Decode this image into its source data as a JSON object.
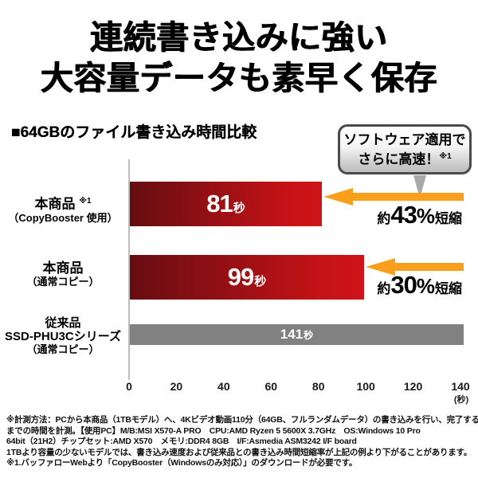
{
  "title": {
    "line1": "連続書き込みに強い",
    "line2": "大容量データも素早く保存"
  },
  "chart": {
    "heading": "■64GBのファイル書き込み時間比較",
    "callout": {
      "line1": "ソフトウェア適用で",
      "line2": "さらに高速！",
      "note": "※1"
    },
    "x_unit_label": "(秒)"
  },
  "chart_data": {
    "type": "bar",
    "orientation": "horizontal",
    "title": "64GBのファイル書き込み時間比較",
    "categories": [
      "本商品（CopyBooster 使用）※1",
      "本商品（通常コピー）",
      "従来品 SSD-PHU3Cシリーズ（通常コピー）"
    ],
    "values": [
      81,
      99,
      141
    ],
    "value_unit": "秒",
    "xlim": [
      0,
      140
    ],
    "x_ticks": [
      0,
      20,
      40,
      60,
      80,
      100,
      120,
      140
    ],
    "x_unit": "秒",
    "bar_colors": [
      "#c41217",
      "#c41217",
      "#818181"
    ],
    "annotations": [
      "約43%短縮",
      "約30%短縮",
      null
    ],
    "grid": false,
    "legend": "none"
  },
  "rows": [
    {
      "label_main": "本商品",
      "label_note": "※1",
      "label_sub": "（CopyBooster 使用）"
    },
    {
      "label_main": "本商品",
      "label_sub": "（通常コピー）"
    },
    {
      "label_main": "従来品",
      "label_mid": "SSD-PHU3Cシリーズ",
      "label_sub": "（通常コピー）"
    }
  ],
  "annotations": [
    {
      "prefix": "約",
      "percent": "43",
      "sign": "%",
      "suffix": "短縮"
    },
    {
      "prefix": "約",
      "percent": "30",
      "sign": "%",
      "suffix": "短縮"
    }
  ],
  "colors": {
    "bar_red_dark": "#660d11",
    "bar_red_bright": "#cf1419",
    "bar_gray": "#818181",
    "arrow_orange": "#f8a01c",
    "axis_gray": "#bdbdbd",
    "callout_border": "#4b4b4b"
  },
  "footnotes": {
    "lines": [
      "※計測方法：PCから本商品（1TBモデル）へ、4Kビデオ動画110分（64GB、フルランダムデータ）の書き込みを行い、完了する",
      "までの時間を計測。【使用PC】M/B:MSI X570-A PRO　CPU:AMD Ryzen 5 5600X 3.7GHz　OS:Windows 10 Pro",
      "64bit（21H2）チップセット:AMD X570　メモリ:DDR4 8GB　I/F:Asmedia ASM3242 I/F board",
      "1TBより容量の少ないモデルでは、書き込み速度および従来品との書き込み時間短縮率が上記の例より下がることがあります。",
      "※1.バッファローWebより「CopyBooster（Windowsのみ対応）」のダウンロードが必要です。"
    ]
  }
}
